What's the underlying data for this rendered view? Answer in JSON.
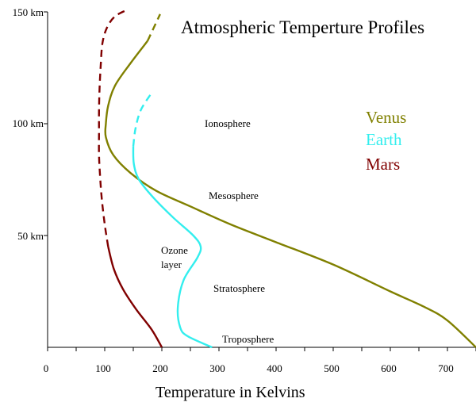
{
  "chart_data": {
    "type": "line",
    "title": "Atmospheric Temperture Profiles",
    "xlabel": "Temperature in Kelvins",
    "ylabel": "",
    "xlim": [
      0,
      750
    ],
    "ylim": [
      0,
      150
    ],
    "x_ticks": [
      "0",
      "100",
      "200",
      "300",
      "400",
      "500",
      "600",
      "700"
    ],
    "y_ticks": [
      "50 km",
      "100 km",
      "150 km"
    ],
    "grid": false,
    "legend": {
      "placement": "right",
      "entries": [
        "Venus",
        "Earth",
        "Mars"
      ]
    },
    "annotations": [
      "Ionosphere",
      "Mesosphere",
      "Ozone",
      "layer",
      "Stratosphere",
      "Troposphere"
    ],
    "series": [
      {
        "name": "Venus",
        "color": "#808000",
        "dashed_from_km": 143,
        "points": [
          [
            750,
            0
          ],
          [
            700,
            12
          ],
          [
            660,
            18
          ],
          [
            600,
            25
          ],
          [
            500,
            37
          ],
          [
            400,
            47
          ],
          [
            320,
            55
          ],
          [
            250,
            63
          ],
          [
            190,
            70
          ],
          [
            145,
            78
          ],
          [
            115,
            86
          ],
          [
            102,
            94
          ],
          [
            102,
            100
          ],
          [
            106,
            108
          ],
          [
            118,
            117
          ],
          [
            145,
            127
          ],
          [
            175,
            137
          ],
          [
            197,
            149
          ]
        ]
      },
      {
        "name": "Earth",
        "color": "#33eeee",
        "dashed_from_km": 92,
        "points": [
          [
            288,
            0
          ],
          [
            245,
            5
          ],
          [
            232,
            9
          ],
          [
            228,
            18
          ],
          [
            238,
            30
          ],
          [
            262,
            40
          ],
          [
            268,
            45
          ],
          [
            255,
            50
          ],
          [
            220,
            58
          ],
          [
            185,
            67
          ],
          [
            160,
            75
          ],
          [
            151,
            82
          ],
          [
            150,
            90
          ],
          [
            154,
            98
          ],
          [
            163,
            106
          ],
          [
            180,
            113
          ]
        ]
      },
      {
        "name": "Mars",
        "color": "#800000",
        "dashed_from_km": 50,
        "points": [
          [
            200,
            0
          ],
          [
            182,
            8
          ],
          [
            155,
            17
          ],
          [
            132,
            26
          ],
          [
            116,
            35
          ],
          [
            106,
            45
          ],
          [
            100,
            55
          ],
          [
            95,
            66
          ],
          [
            92,
            76
          ],
          [
            90,
            86
          ],
          [
            90,
            96
          ],
          [
            90,
            106
          ],
          [
            91,
            116
          ],
          [
            93,
            126
          ],
          [
            96,
            136
          ],
          [
            104,
            143
          ],
          [
            118,
            148
          ],
          [
            140,
            151
          ]
        ]
      }
    ]
  }
}
